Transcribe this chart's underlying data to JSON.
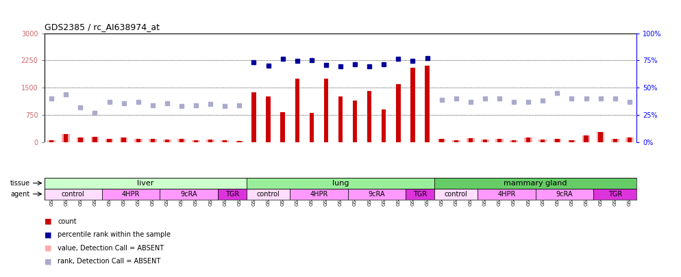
{
  "title": "GDS2385 / rc_AI638974_at",
  "samples": [
    "GSM89873",
    "GSM89875",
    "GSM89878",
    "GSM89881",
    "GSM89841",
    "GSM89843",
    "GSM89846",
    "GSM89870",
    "GSM89858",
    "GSM89861",
    "GSM89664",
    "GSM89849",
    "GSM89852",
    "GSM89855",
    "GSM89676",
    "GSM89679",
    "GSM90168",
    "GSM89642",
    "GSM89644",
    "GSM89871",
    "GSM89559",
    "GSM89862",
    "GSM89865",
    "GSM89868",
    "GSM89850",
    "GSM89853",
    "GSM89856",
    "GSM89674",
    "GSM89677",
    "GSM89880",
    "GSM90169",
    "GSM89845",
    "GSM89848",
    "GSM89872",
    "GSM89860",
    "GSM89663",
    "GSM89666",
    "GSM89669",
    "GSM89851",
    "GSM89654",
    "GSM89657"
  ],
  "counts": [
    55,
    220,
    120,
    145,
    95,
    125,
    85,
    95,
    65,
    90,
    45,
    70,
    50,
    40,
    1380,
    1250,
    820,
    1750,
    800,
    1750,
    1250,
    1150,
    1400,
    900,
    1600,
    2050,
    2100,
    80,
    55,
    110,
    65,
    95,
    60,
    130,
    75,
    90,
    55,
    180,
    280,
    85,
    130
  ],
  "absent_values": [
    55,
    220,
    120,
    145,
    95,
    125,
    85,
    95,
    65,
    90,
    45,
    70,
    50,
    40,
    0,
    0,
    0,
    0,
    0,
    0,
    0,
    0,
    0,
    0,
    0,
    0,
    0,
    80,
    55,
    110,
    65,
    95,
    60,
    130,
    75,
    90,
    55,
    180,
    280,
    85,
    130
  ],
  "percentile_ranks": [
    -1,
    -1,
    -1,
    -1,
    -1,
    -1,
    -1,
    -1,
    -1,
    -1,
    -1,
    -1,
    -1,
    -1,
    2200,
    2100,
    2300,
    2230,
    2260,
    2130,
    2080,
    2150,
    2080,
    2150,
    2300,
    2230,
    2310,
    -1,
    -1,
    -1,
    -1,
    -1,
    -1,
    -1,
    -1,
    -1,
    -1,
    -1,
    -1,
    -1,
    -1
  ],
  "absent_ranks": [
    1200,
    1310,
    960,
    800,
    1100,
    1060,
    1100,
    1010,
    1060,
    1000,
    1010,
    1050,
    1000,
    1010,
    0,
    0,
    0,
    0,
    0,
    0,
    0,
    0,
    0,
    0,
    0,
    0,
    0,
    1160,
    1210,
    1110,
    1210,
    1200,
    1110,
    1110,
    1150,
    1360,
    1210,
    1210,
    1210,
    1210,
    1110
  ],
  "tissue_groups": [
    {
      "label": "liver",
      "start": 0,
      "end": 14,
      "color": "#ccffcc"
    },
    {
      "label": "lung",
      "start": 14,
      "end": 27,
      "color": "#99ee99"
    },
    {
      "label": "mammary gland",
      "start": 27,
      "end": 41,
      "color": "#66cc66"
    }
  ],
  "agent_groups": [
    {
      "label": "control",
      "start": 0,
      "end": 4,
      "color": "#ffddff"
    },
    {
      "label": "4HPR",
      "start": 4,
      "end": 8,
      "color": "#ff99ff"
    },
    {
      "label": "9cRA",
      "start": 8,
      "end": 12,
      "color": "#ff99ff"
    },
    {
      "label": "TGR",
      "start": 12,
      "end": 14,
      "color": "#dd33dd"
    },
    {
      "label": "control",
      "start": 14,
      "end": 17,
      "color": "#ffddff"
    },
    {
      "label": "4HPR",
      "start": 17,
      "end": 21,
      "color": "#ff99ff"
    },
    {
      "label": "9cRA",
      "start": 21,
      "end": 25,
      "color": "#ff99ff"
    },
    {
      "label": "TGR",
      "start": 25,
      "end": 27,
      "color": "#dd33dd"
    },
    {
      "label": "control",
      "start": 27,
      "end": 30,
      "color": "#ffddff"
    },
    {
      "label": "4HPR",
      "start": 30,
      "end": 34,
      "color": "#ff99ff"
    },
    {
      "label": "9cRA",
      "start": 34,
      "end": 38,
      "color": "#ff99ff"
    },
    {
      "label": "TGR",
      "start": 38,
      "end": 41,
      "color": "#dd33dd"
    }
  ],
  "ylim": [
    0,
    3000
  ],
  "yticks": [
    0,
    750,
    1500,
    2250,
    3000
  ],
  "y2ticks_vals": [
    0,
    750,
    1500,
    2250,
    3000
  ],
  "y2ticks_labels": [
    "0%",
    "25%",
    "50%",
    "75%",
    "100%"
  ],
  "bar_color": "#cc0000",
  "absent_bar_color": "#ffaaaa",
  "percentile_color": "#000099",
  "absent_rank_color": "#aaaacc",
  "background_color": "#ffffff"
}
